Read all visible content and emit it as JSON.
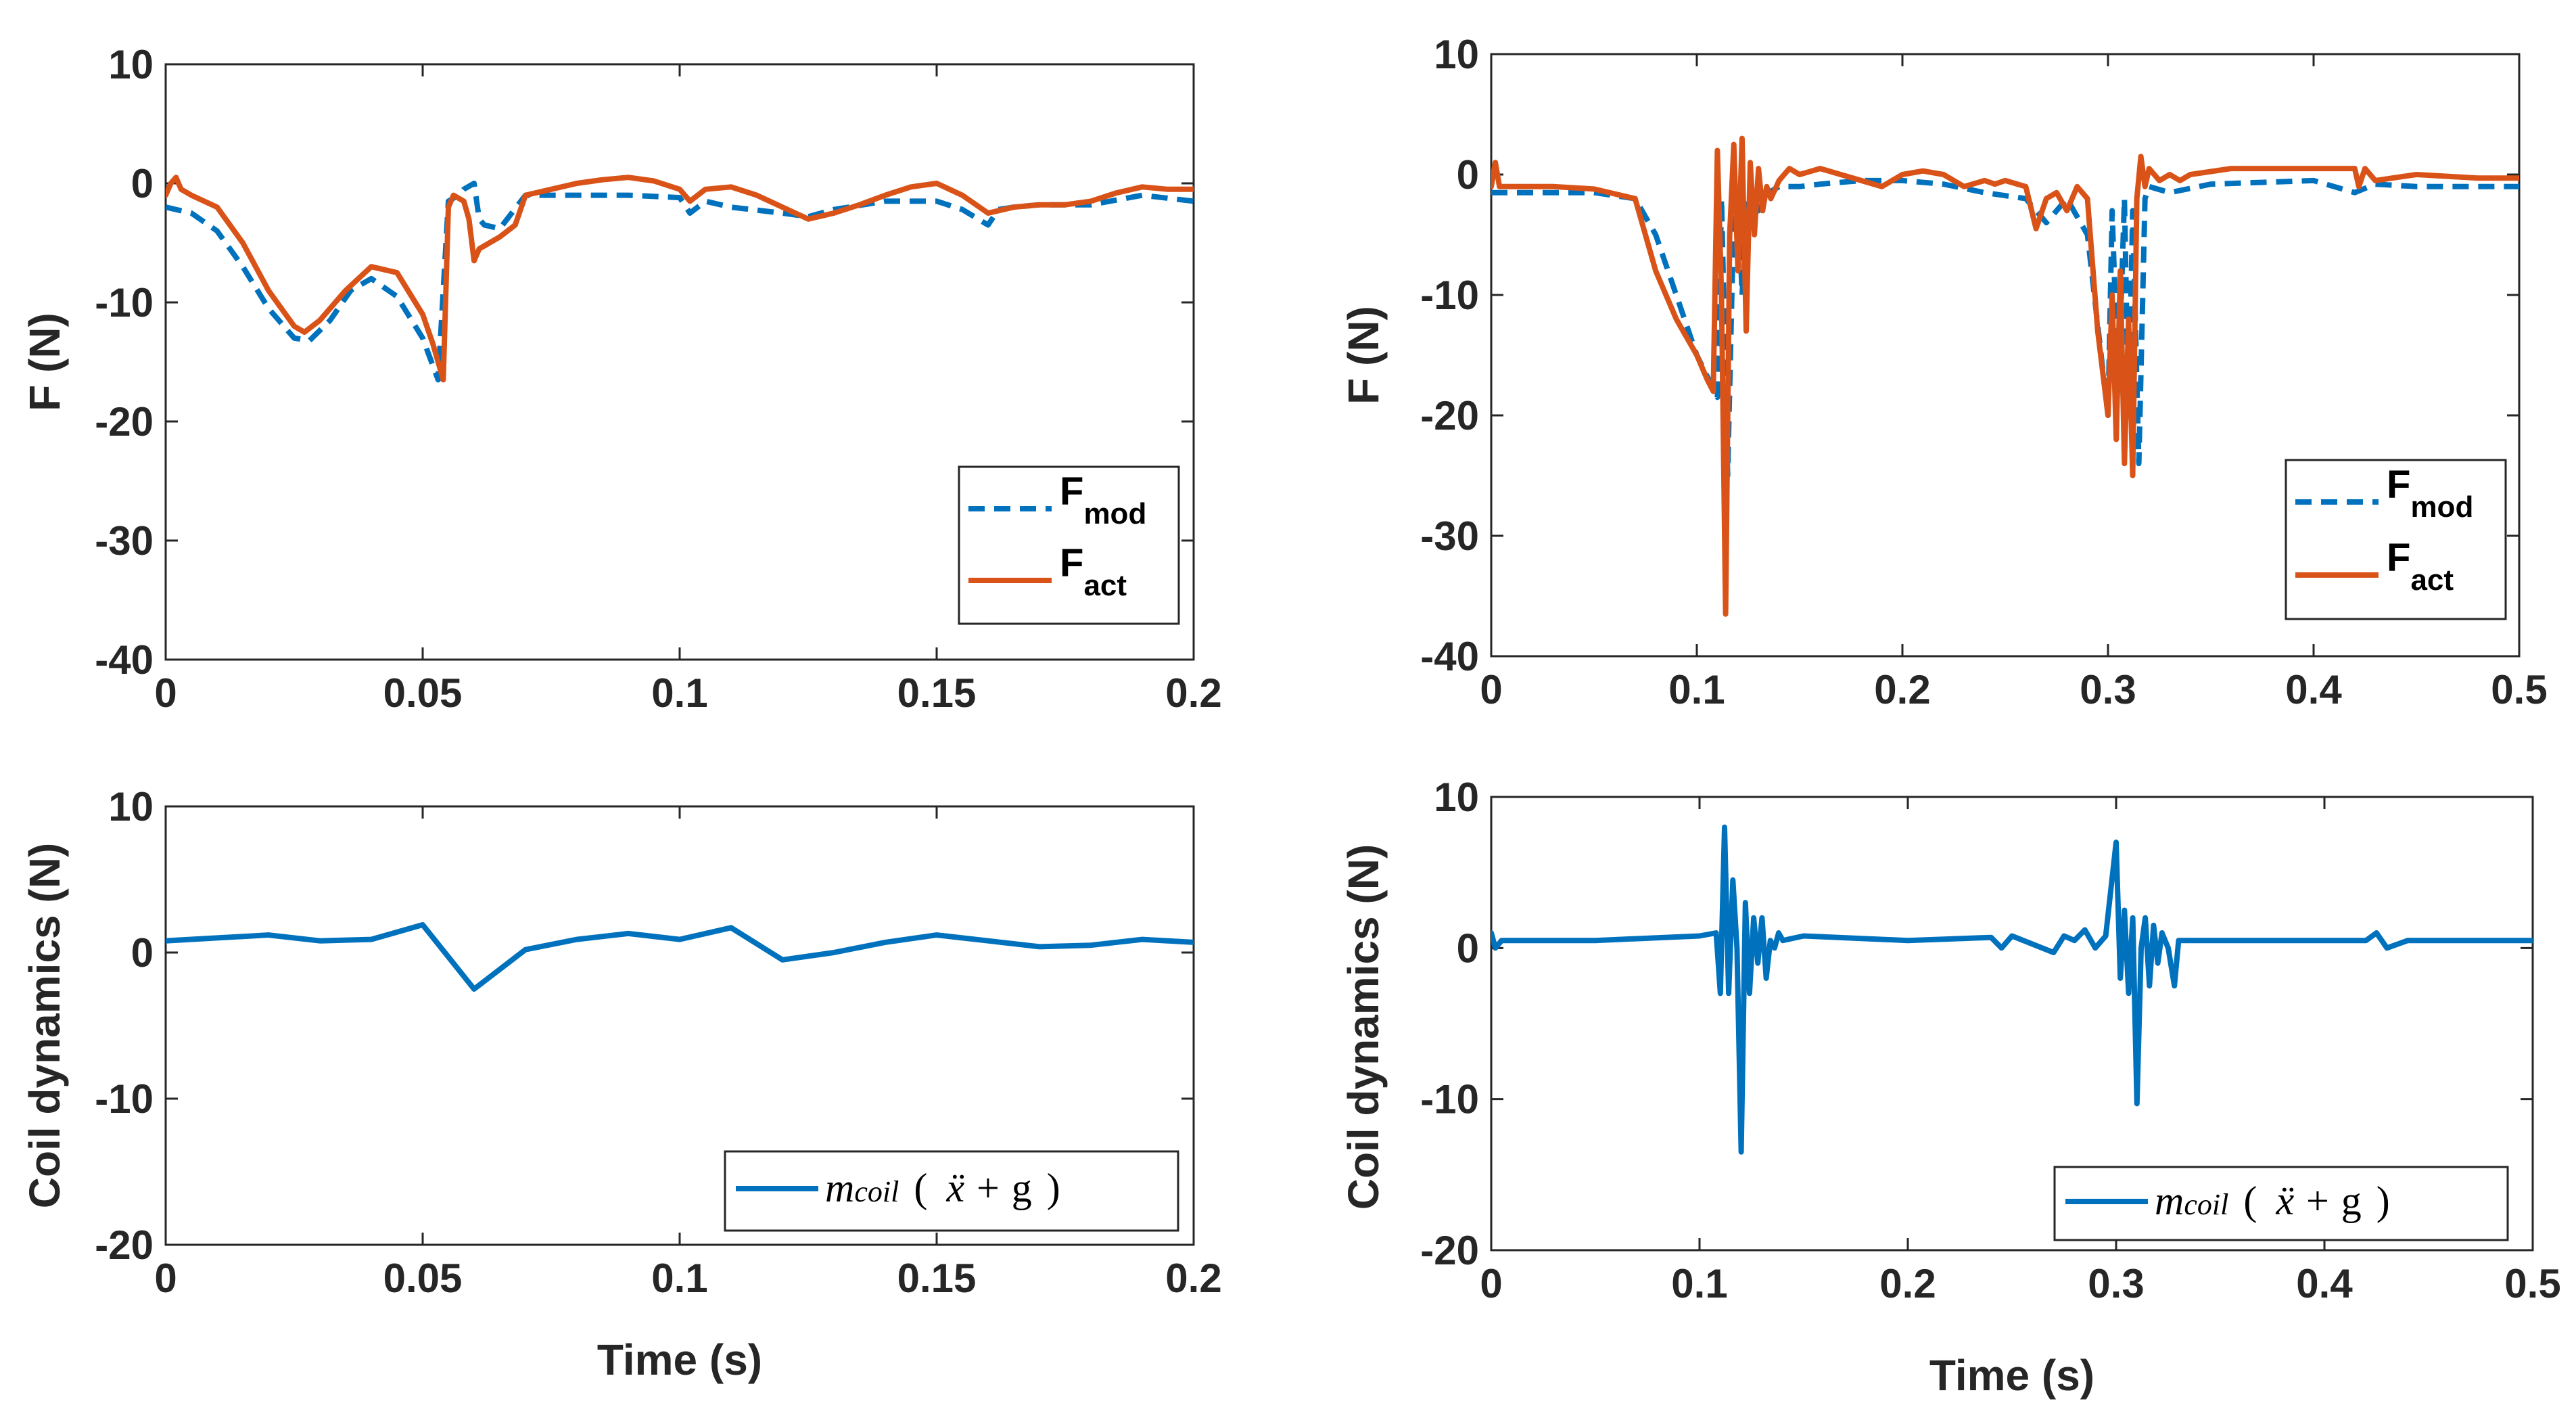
{
  "colors": {
    "model": "#0072BD",
    "actual": "#D95319",
    "coil": "#0072BD",
    "axis": "#262626"
  },
  "chart_data": [
    {
      "type": "line",
      "id": "top-left",
      "xlabel": "",
      "ylabel": "F (N)",
      "xlim": [
        0,
        0.2
      ],
      "ylim": [
        -40,
        10
      ],
      "xticks": [
        0,
        0.05,
        0.1,
        0.15,
        0.2
      ],
      "xtick_labels": [
        "0",
        "0.05",
        "0.1",
        "0.15",
        "0.2"
      ],
      "yticks": [
        -40,
        -30,
        -20,
        -10,
        0,
        10
      ],
      "ytick_labels": [
        "-40",
        "-30",
        "-20",
        "-10",
        "0",
        "10"
      ],
      "legend": {
        "location": "bottom-right",
        "entries": [
          {
            "base": "F",
            "sub": "mod",
            "style": "dashed",
            "color_key": "model"
          },
          {
            "base": "F",
            "sub": "act",
            "style": "solid",
            "color_key": "actual"
          }
        ]
      },
      "series": [
        {
          "name": "F_mod",
          "style": "dashed",
          "color_key": "model",
          "x": [
            0,
            0.005,
            0.01,
            0.015,
            0.02,
            0.025,
            0.028,
            0.032,
            0.036,
            0.04,
            0.045,
            0.05,
            0.053,
            0.055,
            0.057,
            0.058,
            0.06,
            0.061,
            0.062,
            0.065,
            0.07,
            0.08,
            0.09,
            0.1,
            0.102,
            0.105,
            0.11,
            0.12,
            0.125,
            0.13,
            0.14,
            0.15,
            0.155,
            0.16,
            0.162,
            0.165,
            0.17,
            0.18,
            0.19,
            0.2
          ],
          "y": [
            -2,
            -2.5,
            -4,
            -7,
            -10.5,
            -13,
            -13.2,
            -11.5,
            -9,
            -8,
            -9.5,
            -13,
            -16.5,
            -1.5,
            -1,
            -0.5,
            0,
            -3,
            -3.5,
            -3.8,
            -1,
            -1,
            -1,
            -1.2,
            -2.5,
            -1.5,
            -2,
            -2.5,
            -2.8,
            -2.2,
            -1.5,
            -1.5,
            -2.2,
            -3.5,
            -2.2,
            -2,
            -1.8,
            -1.8,
            -1,
            -1.5
          ]
        },
        {
          "name": "F_act",
          "style": "solid",
          "color_key": "actual",
          "x": [
            0,
            0.001,
            0.002,
            0.003,
            0.005,
            0.01,
            0.015,
            0.02,
            0.025,
            0.027,
            0.03,
            0.035,
            0.04,
            0.045,
            0.05,
            0.052,
            0.054,
            0.055,
            0.056,
            0.058,
            0.059,
            0.06,
            0.061,
            0.063,
            0.065,
            0.068,
            0.07,
            0.075,
            0.08,
            0.085,
            0.09,
            0.095,
            0.1,
            0.102,
            0.105,
            0.11,
            0.115,
            0.12,
            0.125,
            0.13,
            0.135,
            0.14,
            0.145,
            0.15,
            0.155,
            0.16,
            0.165,
            0.17,
            0.175,
            0.18,
            0.185,
            0.19,
            0.195,
            0.2
          ],
          "y": [
            -1,
            0,
            0.5,
            -0.5,
            -1,
            -2,
            -5,
            -9,
            -12,
            -12.5,
            -11.5,
            -9,
            -7,
            -7.5,
            -11,
            -13.5,
            -16.5,
            -2,
            -1,
            -1.5,
            -3,
            -6.5,
            -5.5,
            -5,
            -4.5,
            -3.5,
            -1,
            -0.5,
            0,
            0.3,
            0.5,
            0.2,
            -0.5,
            -1.5,
            -0.5,
            -0.3,
            -1,
            -2,
            -3,
            -2.5,
            -1.8,
            -1,
            -0.3,
            0,
            -1,
            -2.5,
            -2,
            -1.8,
            -1.8,
            -1.5,
            -0.8,
            -0.3,
            -0.5,
            -0.5
          ]
        }
      ]
    },
    {
      "type": "line",
      "id": "top-right",
      "xlabel": "",
      "ylabel": "F (N)",
      "xlim": [
        0,
        0.5
      ],
      "ylim": [
        -40,
        10
      ],
      "xticks": [
        0,
        0.1,
        0.2,
        0.3,
        0.4,
        0.5
      ],
      "xtick_labels": [
        "0",
        "0.1",
        "0.2",
        "0.3",
        "0.4",
        "0.5"
      ],
      "yticks": [
        -40,
        -30,
        -20,
        -10,
        0,
        10
      ],
      "ytick_labels": [
        "-40",
        "-30",
        "-20",
        "-10",
        "0",
        "10"
      ],
      "legend": {
        "location": "bottom-right",
        "entries": [
          {
            "base": "F",
            "sub": "mod",
            "style": "dashed",
            "color_key": "model"
          },
          {
            "base": "F",
            "sub": "act",
            "style": "solid",
            "color_key": "actual"
          }
        ]
      },
      "series": [
        {
          "name": "F_mod",
          "style": "dashed",
          "color_key": "model",
          "x": [
            0,
            0.02,
            0.05,
            0.07,
            0.08,
            0.09,
            0.1,
            0.11,
            0.112,
            0.115,
            0.118,
            0.12,
            0.122,
            0.125,
            0.13,
            0.135,
            0.14,
            0.15,
            0.16,
            0.18,
            0.2,
            0.22,
            0.24,
            0.26,
            0.27,
            0.28,
            0.29,
            0.3,
            0.302,
            0.305,
            0.308,
            0.31,
            0.312,
            0.315,
            0.318,
            0.32,
            0.33,
            0.35,
            0.4,
            0.42,
            0.43,
            0.45,
            0.5
          ],
          "y": [
            -1.5,
            -1.5,
            -1.5,
            -2,
            -5,
            -10,
            -15,
            -18.5,
            -2,
            -25,
            -3,
            -1,
            -10,
            -2,
            -3,
            -1.5,
            -1,
            -1,
            -0.8,
            -0.5,
            -0.5,
            -0.8,
            -1.5,
            -2,
            -4,
            -2,
            -5,
            -20,
            -3,
            -18,
            -2,
            -20,
            -3,
            -24,
            -2,
            -1,
            -1.5,
            -0.8,
            -0.5,
            -1.5,
            -0.8,
            -1,
            -1
          ]
        },
        {
          "name": "F_act",
          "style": "solid",
          "color_key": "actual",
          "x": [
            0,
            0.002,
            0.004,
            0.01,
            0.03,
            0.05,
            0.07,
            0.075,
            0.08,
            0.09,
            0.1,
            0.105,
            0.108,
            0.11,
            0.112,
            0.114,
            0.116,
            0.118,
            0.12,
            0.122,
            0.124,
            0.126,
            0.128,
            0.13,
            0.132,
            0.134,
            0.136,
            0.14,
            0.145,
            0.15,
            0.16,
            0.18,
            0.19,
            0.2,
            0.21,
            0.22,
            0.23,
            0.24,
            0.245,
            0.25,
            0.26,
            0.265,
            0.27,
            0.275,
            0.28,
            0.285,
            0.29,
            0.295,
            0.3,
            0.302,
            0.304,
            0.306,
            0.308,
            0.31,
            0.312,
            0.314,
            0.316,
            0.318,
            0.32,
            0.325,
            0.33,
            0.335,
            0.34,
            0.36,
            0.38,
            0.4,
            0.42,
            0.422,
            0.425,
            0.43,
            0.45,
            0.48,
            0.5
          ],
          "y": [
            -1,
            1,
            -1,
            -1,
            -1,
            -1.2,
            -2,
            -5,
            -8,
            -12,
            -15,
            -17,
            -18,
            2,
            -10,
            -36.5,
            -5,
            2.5,
            -8,
            3,
            -13,
            1,
            -5,
            0.5,
            -3,
            -1,
            -2,
            -0.5,
            0.5,
            0,
            0.5,
            -0.5,
            -1,
            0,
            0.3,
            0,
            -1,
            -0.5,
            -0.8,
            -0.5,
            -1,
            -4.5,
            -2,
            -1.5,
            -3,
            -1,
            -2,
            -13,
            -20,
            -10,
            -22,
            -8,
            -24,
            -12,
            -25,
            -2,
            1.5,
            -1,
            0.5,
            -0.5,
            0,
            -0.5,
            0,
            0.5,
            0.5,
            0.5,
            0.5,
            -1,
            0.5,
            -0.5,
            0,
            -0.3,
            -0.3
          ]
        }
      ]
    },
    {
      "type": "line",
      "id": "bottom-left",
      "xlabel": "Time (s)",
      "ylabel": "Coil dynamics (N)",
      "xlim": [
        0,
        0.2
      ],
      "ylim": [
        -20,
        10
      ],
      "xticks": [
        0,
        0.05,
        0.1,
        0.15,
        0.2
      ],
      "xtick_labels": [
        "0",
        "0.05",
        "0.1",
        "0.15",
        "0.2"
      ],
      "yticks": [
        -20,
        -10,
        0,
        10
      ],
      "ytick_labels": [
        "-20",
        "-10",
        "0",
        "10"
      ],
      "legend": {
        "location": "bottom-right",
        "entries": [
          {
            "math": {
              "m": "m",
              "sub": "coil",
              "open": "(",
              "xdd": "ẍ",
              "plus": "+",
              "g": "g",
              "close": ")"
            },
            "style": "solid",
            "color_key": "coil"
          }
        ]
      },
      "series": [
        {
          "name": "m_coil (x'' + g)",
          "style": "solid",
          "color_key": "coil",
          "x": [
            0,
            0.01,
            0.02,
            0.03,
            0.04,
            0.05,
            0.06,
            0.07,
            0.08,
            0.09,
            0.1,
            0.11,
            0.12,
            0.13,
            0.14,
            0.15,
            0.16,
            0.17,
            0.18,
            0.19,
            0.2
          ],
          "y": [
            0.8,
            1,
            1.2,
            0.8,
            0.9,
            1.9,
            -2.5,
            0.2,
            0.9,
            1.3,
            0.9,
            1.7,
            -0.5,
            0,
            0.7,
            1.2,
            0.8,
            0.4,
            0.5,
            0.9,
            0.7
          ]
        }
      ]
    },
    {
      "type": "line",
      "id": "bottom-right",
      "xlabel": "Time (s)",
      "ylabel": "Coil dynamics (N)",
      "xlim": [
        0,
        0.5
      ],
      "ylim": [
        -20,
        10
      ],
      "xticks": [
        0,
        0.1,
        0.2,
        0.3,
        0.4,
        0.5
      ],
      "xtick_labels": [
        "0",
        "0.1",
        "0.2",
        "0.3",
        "0.4",
        "0.5"
      ],
      "yticks": [
        -20,
        -10,
        0,
        10
      ],
      "ytick_labels": [
        "-20",
        "-10",
        "0",
        "10"
      ],
      "legend": {
        "location": "bottom-right",
        "entries": [
          {
            "math": {
              "m": "m",
              "sub": "coil",
              "open": "(",
              "xdd": "ẍ",
              "plus": "+",
              "g": "g",
              "close": ")"
            },
            "style": "solid",
            "color_key": "coil"
          }
        ]
      },
      "series": [
        {
          "name": "m_coil (x'' + g)",
          "style": "solid",
          "color_key": "coil",
          "x": [
            0,
            0.002,
            0.005,
            0.01,
            0.05,
            0.1,
            0.108,
            0.11,
            0.112,
            0.114,
            0.116,
            0.118,
            0.12,
            0.122,
            0.124,
            0.126,
            0.128,
            0.13,
            0.132,
            0.134,
            0.136,
            0.138,
            0.14,
            0.15,
            0.2,
            0.24,
            0.245,
            0.25,
            0.27,
            0.275,
            0.28,
            0.285,
            0.29,
            0.295,
            0.3,
            0.302,
            0.304,
            0.306,
            0.308,
            0.31,
            0.312,
            0.314,
            0.316,
            0.318,
            0.32,
            0.322,
            0.325,
            0.328,
            0.33,
            0.335,
            0.34,
            0.36,
            0.4,
            0.42,
            0.425,
            0.43,
            0.44,
            0.46,
            0.5
          ],
          "y": [
            1,
            0,
            0.5,
            0.5,
            0.5,
            0.8,
            1,
            -3,
            8,
            -3,
            4.5,
            0,
            -13.5,
            3,
            -3,
            2,
            -1,
            2,
            -2,
            0.5,
            0,
            1,
            0.5,
            0.8,
            0.5,
            0.7,
            0,
            0.8,
            -0.3,
            0.8,
            0.5,
            1.2,
            0,
            0.8,
            7,
            -2,
            2.5,
            -3,
            2,
            -10.3,
            0,
            2,
            -2.5,
            1.5,
            -1,
            1,
            0,
            -2.5,
            0.5,
            0.5,
            0.5,
            0.5,
            0.5,
            0.5,
            1,
            0,
            0.5,
            0.5,
            0.5
          ]
        }
      ]
    }
  ]
}
